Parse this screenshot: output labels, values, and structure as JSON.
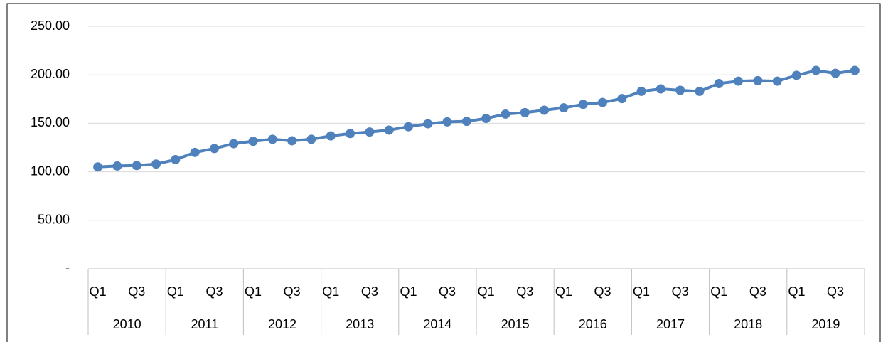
{
  "chart_data": {
    "type": "line",
    "categories": [
      "Q1",
      null,
      "Q3",
      null,
      "Q1",
      null,
      "Q3",
      null,
      "Q1",
      null,
      "Q3",
      null,
      "Q1",
      null,
      "Q3",
      null,
      "Q1",
      null,
      "Q3",
      null,
      "Q1",
      null,
      "Q3",
      null,
      "Q1",
      null,
      "Q3",
      null,
      "Q1",
      null,
      "Q3",
      null,
      "Q1",
      null,
      "Q3",
      null,
      "Q1",
      null,
      "Q3",
      null
    ],
    "category_groups": [
      "2010",
      "2011",
      "2012",
      "2013",
      "2014",
      "2015",
      "2016",
      "2017",
      "2018",
      "2019"
    ],
    "series": [
      {
        "color": "#4f81bd",
        "values": [
          105,
          106,
          106.5,
          108,
          112.5,
          120,
          124,
          129,
          131.5,
          133.5,
          132,
          133.5,
          137,
          139.5,
          141,
          143,
          146.5,
          149.5,
          151.5,
          152,
          155,
          159.5,
          161,
          163.5,
          166,
          169.5,
          171.5,
          175.5,
          183,
          185.5,
          184,
          183,
          191,
          193.5,
          194,
          193.5,
          199.5,
          204.5,
          201.5,
          204.5
        ]
      }
    ],
    "ylim": [
      0,
      250
    ],
    "yticks": [
      {
        "value": 0,
        "label": "-"
      },
      {
        "value": 50,
        "label": "50.00"
      },
      {
        "value": 100,
        "label": "100.00"
      },
      {
        "value": 150,
        "label": "150.00"
      },
      {
        "value": 200,
        "label": "200.00"
      },
      {
        "value": 250,
        "label": "250.00"
      }
    ],
    "grid": true
  }
}
